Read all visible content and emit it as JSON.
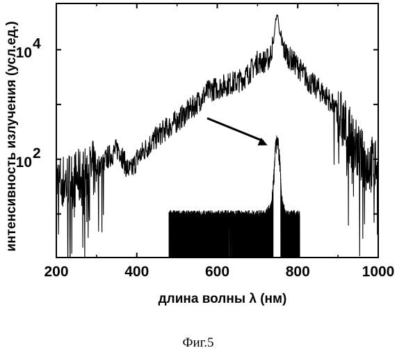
{
  "chart_data": {
    "type": "line",
    "title": "",
    "xlabel": "длина волны λ (нм)",
    "ylabel": "интенсивность излучения (усл.ед.)",
    "xlim": [
      200,
      1000
    ],
    "ylim": [
      1.6,
      70000
    ],
    "yscale": "log",
    "grid": false,
    "x_ticks": [
      200,
      400,
      600,
      800,
      1000
    ],
    "x_tick_labels": [
      "200",
      "400",
      "600",
      "800",
      "1000"
    ],
    "y_ticks": [
      100,
      10000
    ],
    "y_tick_labels": [
      {
        "base": "10",
        "exp": "2"
      },
      {
        "base": "10",
        "exp": "4"
      }
    ],
    "series": [
      {
        "x": [
          200,
          230,
          260,
          300,
          330,
          355,
          375,
          385,
          400,
          430,
          460,
          500,
          540,
          560,
          580,
          600,
          630,
          650,
          670,
          685,
          700,
          715,
          730,
          740,
          745,
          750,
          755,
          765,
          780,
          800,
          830,
          860,
          880,
          900,
          920,
          940,
          960,
          980,
          1000
        ],
        "y": [
          35,
          40,
          45,
          70,
          110,
          160,
          70,
          60,
          100,
          180,
          300,
          500,
          900,
          1300,
          1800,
          2000,
          2400,
          2600,
          3200,
          4300,
          6000,
          6000,
          7000,
          14000,
          35000,
          45000,
          20000,
          10000,
          7000,
          5000,
          2500,
          1700,
          1200,
          700,
          350,
          180,
          100,
          80,
          80
        ],
        "noise": "heavy"
      },
      {
        "x_range": [
          480,
          805
        ],
        "x": [
          480,
          500,
          550,
          600,
          650,
          700,
          720,
          735,
          740,
          745,
          750,
          755,
          760,
          770,
          800,
          805
        ],
        "y": [
          10,
          10,
          10,
          10,
          10,
          10,
          10,
          15,
          50,
          200,
          280,
          120,
          20,
          10,
          10,
          10
        ],
        "noise": "dense"
      }
    ],
    "annotation": {
      "type": "arrow",
      "from": [
        575,
        560
      ],
      "to": [
        725,
        180
      ]
    }
  },
  "caption": "Фиг.5"
}
